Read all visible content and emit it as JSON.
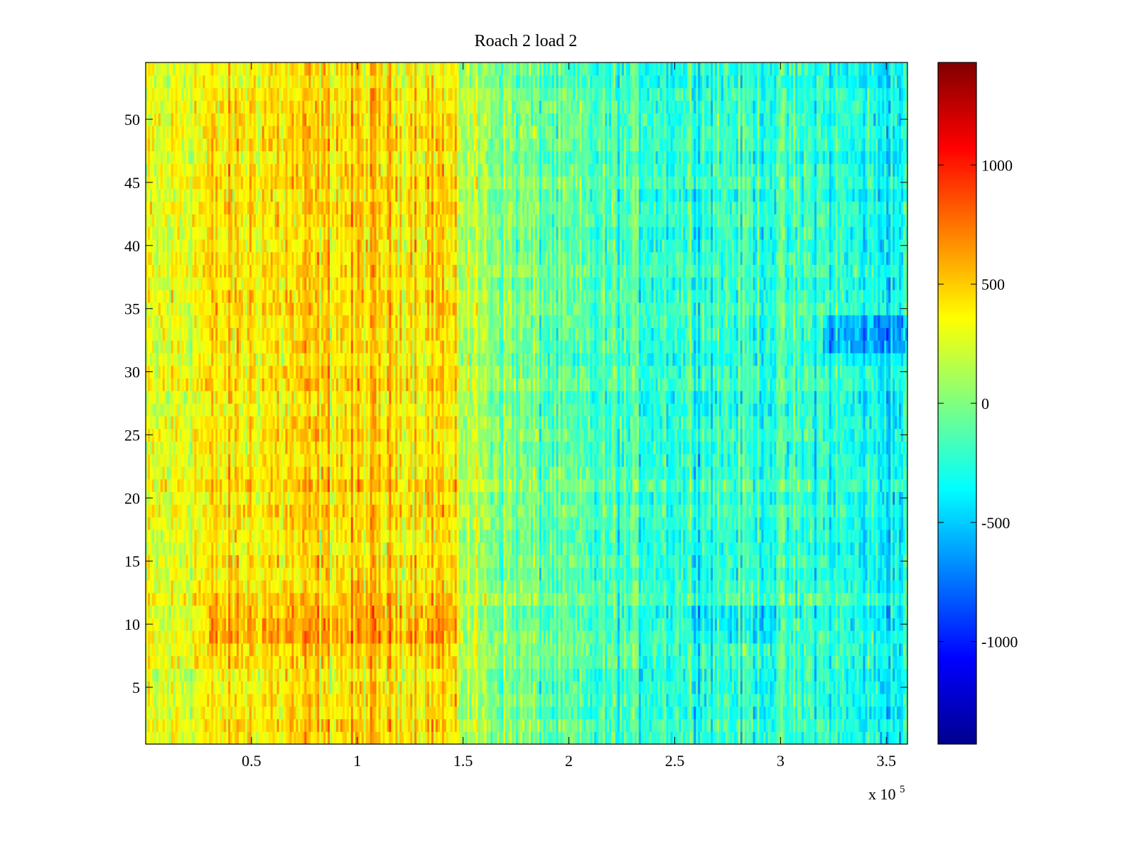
{
  "chart_data": {
    "type": "heatmap",
    "title": "Roach 2 load 2",
    "xlabel": "",
    "ylabel": "",
    "x_multiplier_label": "x 10",
    "x_multiplier_exponent": "5",
    "x_range": [
      0,
      360000
    ],
    "y_range": [
      0.5,
      54.5
    ],
    "rows": 54,
    "columns": 360,
    "x_ticks": [
      {
        "value": 50000,
        "label": "0.5"
      },
      {
        "value": 100000,
        "label": "1"
      },
      {
        "value": 150000,
        "label": "1.5"
      },
      {
        "value": 200000,
        "label": "2"
      },
      {
        "value": 250000,
        "label": "2.5"
      },
      {
        "value": 300000,
        "label": "3"
      },
      {
        "value": 350000,
        "label": "3.5"
      }
    ],
    "y_ticks": [
      {
        "value": 5,
        "label": "5"
      },
      {
        "value": 10,
        "label": "10"
      },
      {
        "value": 15,
        "label": "15"
      },
      {
        "value": 20,
        "label": "20"
      },
      {
        "value": 25,
        "label": "25"
      },
      {
        "value": 30,
        "label": "30"
      },
      {
        "value": 35,
        "label": "35"
      },
      {
        "value": 40,
        "label": "40"
      },
      {
        "value": 45,
        "label": "45"
      },
      {
        "value": 50,
        "label": "50"
      }
    ],
    "colorbar": {
      "colormap": "jet",
      "range": [
        -1430,
        1430
      ],
      "ticks": [
        {
          "value": -1000,
          "label": "-1000"
        },
        {
          "value": -500,
          "label": "-500"
        },
        {
          "value": 0,
          "label": "0"
        },
        {
          "value": 500,
          "label": "500"
        },
        {
          "value": 1000,
          "label": "1000"
        }
      ]
    },
    "value_profile": {
      "note": "",
      "x": [
        0,
        30000,
        50000,
        90000,
        120000,
        140000,
        150000,
        165000,
        200000,
        255000,
        300000,
        320000,
        340000,
        360000
      ],
      "mean": [
        220,
        380,
        420,
        440,
        450,
        470,
        180,
        60,
        -170,
        -200,
        -210,
        -230,
        -320,
        -330
      ],
      "noise": 260,
      "row_adjustments": [
        {
          "rows": [
            9,
            11
          ],
          "x_range": [
            30000,
            150000
          ],
          "delta": 180
        },
        {
          "rows": [
            32,
            34
          ],
          "x_range": [
            320000,
            360000
          ],
          "delta": -300
        },
        {
          "rows": [
            9,
            11
          ],
          "x_range": [
            255000,
            300000
          ],
          "delta": -120
        }
      ]
    }
  }
}
